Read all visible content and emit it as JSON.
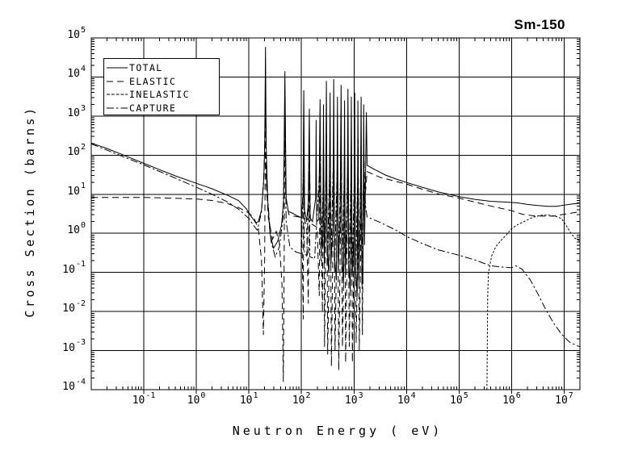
{
  "title": "Sm-150",
  "colors": {
    "foreground": "#000000",
    "background": "#ffffff"
  },
  "axes": {
    "x": {
      "label": "Neutron Energy ( eV)",
      "base": "10",
      "scale": "log",
      "log_min": -2,
      "log_max": 7.3,
      "tick_exponents": [
        -1,
        0,
        1,
        2,
        3,
        4,
        5,
        6,
        7
      ]
    },
    "y": {
      "label": "Cross Section (barns)",
      "base": "10",
      "scale": "log",
      "log_min": -4,
      "log_max": 5,
      "tick_exponents": [
        5,
        4,
        3,
        2,
        1,
        0,
        -1,
        -2,
        -3,
        -4
      ]
    }
  },
  "legend": {
    "entries": [
      {
        "label": "TOTAL",
        "style": "solid"
      },
      {
        "label": "ELASTIC",
        "style": "long-dash"
      },
      {
        "label": "INELASTIC",
        "style": "dotted"
      },
      {
        "label": "CAPTURE",
        "style": "dash-dot"
      }
    ]
  },
  "chart_data": {
    "type": "line",
    "title": "Sm-150",
    "xlabel": "Neutron Energy ( eV)",
    "ylabel": "Cross Section (barns)",
    "x_scale": "log",
    "y_scale": "log",
    "grid": true,
    "legend_position": "upper-left",
    "x_range_eV": [
      0.01,
      20000000
    ],
    "y_range_barns": [
      0.0001,
      100000
    ],
    "series": [
      {
        "name": "TOTAL",
        "style": "solid",
        "points_log10": [
          [
            -2.0,
            2.31
          ],
          [
            -1.7,
            2.17
          ],
          [
            -1.4,
            2.01
          ],
          [
            -1.0,
            1.79
          ],
          [
            -0.7,
            1.63
          ],
          [
            -0.4,
            1.47
          ],
          [
            0.0,
            1.28
          ],
          [
            0.3,
            1.14
          ],
          [
            0.6,
            0.97
          ],
          [
            0.8,
            0.84
          ],
          [
            0.95,
            0.63
          ],
          [
            1.05,
            0.42
          ],
          [
            1.13,
            0.27
          ],
          [
            1.18,
            0.3
          ],
          [
            1.24,
            0.6
          ],
          [
            1.28,
            1.3
          ],
          [
            1.3,
            2.2
          ],
          [
            1.315,
            4.77
          ],
          [
            1.33,
            2.2
          ],
          [
            1.36,
            0.8
          ],
          [
            1.4,
            0.0
          ],
          [
            1.47,
            -0.38
          ],
          [
            1.55,
            -0.2
          ],
          [
            1.62,
            0.2
          ],
          [
            1.66,
            0.8
          ],
          [
            1.685,
            4.15
          ],
          [
            1.71,
            0.9
          ],
          [
            1.75,
            0.56
          ],
          [
            1.82,
            0.52
          ],
          [
            1.92,
            0.45
          ],
          [
            2.0,
            0.4
          ],
          [
            2.03,
            1.0
          ],
          [
            2.045,
            3.66
          ],
          [
            2.06,
            0.6
          ],
          [
            2.1,
            0.3
          ],
          [
            2.13,
            0.8
          ],
          [
            2.15,
            3.19
          ],
          [
            2.165,
            0.4
          ],
          [
            2.21,
            0.3
          ],
          [
            2.27,
            0.9
          ],
          [
            2.28,
            2.9
          ],
          [
            2.29,
            0.3
          ],
          [
            2.33,
            0.35
          ],
          [
            2.355,
            3.43
          ],
          [
            2.37,
            0.1
          ],
          [
            2.405,
            -0.4
          ],
          [
            2.42,
            3.3
          ],
          [
            2.435,
            -0.6
          ],
          [
            2.46,
            0.3
          ],
          [
            2.475,
            3.9
          ],
          [
            2.49,
            -0.4
          ],
          [
            2.52,
            -1.0
          ],
          [
            2.545,
            3.6
          ],
          [
            2.56,
            -0.8
          ],
          [
            2.6,
            0.1
          ],
          [
            2.615,
            3.95
          ],
          [
            2.63,
            -0.6
          ],
          [
            2.665,
            -1.2
          ],
          [
            2.685,
            3.5
          ],
          [
            2.7,
            -0.8
          ],
          [
            2.735,
            0.2
          ],
          [
            2.755,
            3.8
          ],
          [
            2.77,
            -0.5
          ],
          [
            2.8,
            -1.3
          ],
          [
            2.82,
            3.4
          ],
          [
            2.835,
            -0.9
          ],
          [
            2.87,
            0.1
          ],
          [
            2.885,
            3.7
          ],
          [
            2.9,
            -0.7
          ],
          [
            2.93,
            -1.5
          ],
          [
            2.95,
            3.5
          ],
          [
            2.965,
            -1.1
          ],
          [
            3.0,
            -0.1
          ],
          [
            3.015,
            3.6
          ],
          [
            3.03,
            -0.9
          ],
          [
            3.06,
            -1.6
          ],
          [
            3.075,
            3.4
          ],
          [
            3.09,
            -1.2
          ],
          [
            3.12,
            0.3
          ],
          [
            3.135,
            3.5
          ],
          [
            3.15,
            -0.8
          ],
          [
            3.17,
            -1.3
          ],
          [
            3.185,
            3.3
          ],
          [
            3.2,
            -0.3
          ],
          [
            3.22,
            1.5
          ],
          [
            3.235,
            3.1
          ],
          [
            3.25,
            1.74
          ],
          [
            3.4,
            1.63
          ],
          [
            3.6,
            1.49
          ],
          [
            3.8,
            1.39
          ],
          [
            4.0,
            1.3
          ],
          [
            4.3,
            1.18
          ],
          [
            4.6,
            1.06
          ],
          [
            5.0,
            0.94
          ],
          [
            5.3,
            0.87
          ],
          [
            5.6,
            0.82
          ],
          [
            5.9,
            0.8
          ],
          [
            6.1,
            0.78
          ],
          [
            6.3,
            0.74
          ],
          [
            6.5,
            0.71
          ],
          [
            6.7,
            0.69
          ],
          [
            6.85,
            0.69
          ],
          [
            7.0,
            0.72
          ],
          [
            7.15,
            0.75
          ],
          [
            7.3,
            0.77
          ]
        ]
      },
      {
        "name": "ELASTIC",
        "style": "long-dash",
        "points_log10": [
          [
            -2.0,
            0.92
          ],
          [
            -1.5,
            0.92
          ],
          [
            -1.0,
            0.92
          ],
          [
            -0.5,
            0.9
          ],
          [
            0.0,
            0.88
          ],
          [
            0.3,
            0.84
          ],
          [
            0.6,
            0.76
          ],
          [
            0.8,
            0.66
          ],
          [
            1.0,
            0.52
          ],
          [
            1.1,
            0.38
          ],
          [
            1.18,
            0.12
          ],
          [
            1.24,
            -0.7
          ],
          [
            1.275,
            -2.6
          ],
          [
            1.3,
            -0.6
          ],
          [
            1.315,
            3.2
          ],
          [
            1.33,
            1.3
          ],
          [
            1.37,
            0.4
          ],
          [
            1.45,
            -0.15
          ],
          [
            1.52,
            0.05
          ],
          [
            1.58,
            -0.25
          ],
          [
            1.63,
            -1.3
          ],
          [
            1.655,
            -3.8
          ],
          [
            1.67,
            -1.2
          ],
          [
            1.685,
            3.3
          ],
          [
            1.7,
            0.9
          ],
          [
            1.76,
            0.48
          ],
          [
            1.85,
            0.44
          ],
          [
            1.95,
            0.42
          ],
          [
            2.0,
            0.38
          ],
          [
            2.02,
            -0.8
          ],
          [
            2.035,
            -2.2
          ],
          [
            2.045,
            2.8
          ],
          [
            2.06,
            0.35
          ],
          [
            2.1,
            0.18
          ],
          [
            2.13,
            -1.8
          ],
          [
            2.15,
            2.4
          ],
          [
            2.17,
            0.25
          ],
          [
            2.22,
            0.22
          ],
          [
            2.3,
            0.15
          ],
          [
            2.34,
            -1.6
          ],
          [
            2.355,
            2.6
          ],
          [
            2.375,
            0.1
          ],
          [
            2.4,
            -2.0
          ],
          [
            2.42,
            2.4
          ],
          [
            2.44,
            -2.9
          ],
          [
            2.46,
            0.0
          ],
          [
            2.475,
            2.9
          ],
          [
            2.5,
            -3.1
          ],
          [
            2.53,
            -0.5
          ],
          [
            2.545,
            2.6
          ],
          [
            2.57,
            -3.4
          ],
          [
            2.6,
            -0.2
          ],
          [
            2.615,
            2.9
          ],
          [
            2.64,
            -3.0
          ],
          [
            2.67,
            -0.5
          ],
          [
            2.685,
            2.5
          ],
          [
            2.71,
            -3.5
          ],
          [
            2.74,
            -0.1
          ],
          [
            2.755,
            2.8
          ],
          [
            2.78,
            -2.9
          ],
          [
            2.81,
            -0.6
          ],
          [
            2.82,
            2.4
          ],
          [
            2.84,
            -3.3
          ],
          [
            2.87,
            -0.2
          ],
          [
            2.885,
            2.6
          ],
          [
            2.91,
            -2.9
          ],
          [
            2.94,
            -0.7
          ],
          [
            2.95,
            2.5
          ],
          [
            2.97,
            -3.3
          ],
          [
            3.0,
            -0.3
          ],
          [
            3.015,
            2.6
          ],
          [
            3.04,
            -2.8
          ],
          [
            3.07,
            -0.8
          ],
          [
            3.08,
            2.4
          ],
          [
            3.1,
            -3.0
          ],
          [
            3.13,
            -0.2
          ],
          [
            3.135,
            2.5
          ],
          [
            3.16,
            -2.6
          ],
          [
            3.185,
            2.3
          ],
          [
            3.21,
            0.9
          ],
          [
            3.25,
            1.58
          ],
          [
            3.5,
            1.43
          ],
          [
            3.8,
            1.33
          ],
          [
            4.0,
            1.26
          ],
          [
            4.3,
            1.13
          ],
          [
            4.6,
            1.01
          ],
          [
            5.0,
            0.9
          ],
          [
            5.3,
            0.8
          ],
          [
            5.6,
            0.7
          ],
          [
            5.8,
            0.64
          ],
          [
            6.0,
            0.58
          ],
          [
            6.2,
            0.49
          ],
          [
            6.4,
            0.45
          ],
          [
            6.6,
            0.44
          ],
          [
            6.8,
            0.44
          ],
          [
            7.0,
            0.49
          ],
          [
            7.15,
            0.52
          ],
          [
            7.3,
            0.55
          ]
        ]
      },
      {
        "name": "INELASTIC",
        "style": "dotted",
        "points_log10": [
          [
            5.53,
            -4.0
          ],
          [
            5.545,
            -1.6
          ],
          [
            5.56,
            -1.0
          ],
          [
            5.62,
            -0.58
          ],
          [
            5.7,
            -0.34
          ],
          [
            5.8,
            -0.18
          ],
          [
            5.9,
            -0.04
          ],
          [
            6.0,
            0.12
          ],
          [
            6.1,
            0.21
          ],
          [
            6.25,
            0.31
          ],
          [
            6.4,
            0.41
          ],
          [
            6.55,
            0.46
          ],
          [
            6.7,
            0.47
          ],
          [
            6.85,
            0.43
          ],
          [
            6.95,
            0.38
          ],
          [
            7.05,
            0.18
          ],
          [
            7.12,
            0.02
          ],
          [
            7.2,
            -0.12
          ],
          [
            7.3,
            -0.2
          ]
        ]
      },
      {
        "name": "CAPTURE",
        "style": "dash-dot",
        "points_log10": [
          [
            -2.0,
            2.29
          ],
          [
            -1.5,
            2.02
          ],
          [
            -1.0,
            1.75
          ],
          [
            -0.5,
            1.47
          ],
          [
            0.0,
            1.18
          ],
          [
            0.3,
            1.0
          ],
          [
            0.6,
            0.8
          ],
          [
            0.8,
            0.62
          ],
          [
            1.0,
            0.38
          ],
          [
            1.1,
            0.18
          ],
          [
            1.16,
            0.08
          ],
          [
            1.24,
            0.55
          ],
          [
            1.29,
            1.6
          ],
          [
            1.315,
            3.35
          ],
          [
            1.34,
            1.2
          ],
          [
            1.42,
            -0.2
          ],
          [
            1.5,
            -0.6
          ],
          [
            1.58,
            -0.35
          ],
          [
            1.65,
            0.4
          ],
          [
            1.685,
            2.95
          ],
          [
            1.71,
            0.3
          ],
          [
            1.78,
            -0.35
          ],
          [
            1.9,
            -0.48
          ],
          [
            2.0,
            -0.52
          ],
          [
            2.04,
            1.9
          ],
          [
            2.055,
            -0.5
          ],
          [
            2.1,
            -0.58
          ],
          [
            2.15,
            1.6
          ],
          [
            2.16,
            -0.6
          ],
          [
            2.25,
            -0.65
          ],
          [
            2.355,
            1.8
          ],
          [
            2.37,
            -0.7
          ],
          [
            2.42,
            1.5
          ],
          [
            2.435,
            -0.75
          ],
          [
            2.475,
            2.2
          ],
          [
            2.49,
            -0.8
          ],
          [
            2.545,
            2.0
          ],
          [
            2.56,
            -0.85
          ],
          [
            2.615,
            2.3
          ],
          [
            2.63,
            -0.9
          ],
          [
            2.685,
            1.9
          ],
          [
            2.7,
            -0.95
          ],
          [
            2.755,
            2.1
          ],
          [
            2.77,
            -1.0
          ],
          [
            2.82,
            1.8
          ],
          [
            2.835,
            -1.05
          ],
          [
            2.885,
            2.0
          ],
          [
            2.9,
            -1.1
          ],
          [
            2.95,
            1.8
          ],
          [
            2.965,
            -1.15
          ],
          [
            3.015,
            1.9
          ],
          [
            3.03,
            -1.2
          ],
          [
            3.075,
            1.7
          ],
          [
            3.09,
            -1.25
          ],
          [
            3.135,
            1.8
          ],
          [
            3.15,
            -1.3
          ],
          [
            3.185,
            1.6
          ],
          [
            3.22,
            0.7
          ],
          [
            3.25,
            0.42
          ],
          [
            3.5,
            0.28
          ],
          [
            3.8,
            0.08
          ],
          [
            4.0,
            -0.08
          ],
          [
            4.3,
            -0.26
          ],
          [
            4.6,
            -0.42
          ],
          [
            5.0,
            -0.56
          ],
          [
            5.3,
            -0.68
          ],
          [
            5.5,
            -0.78
          ],
          [
            5.6,
            -0.83
          ],
          [
            5.8,
            -0.86
          ],
          [
            6.0,
            -0.88
          ],
          [
            6.08,
            -0.83
          ],
          [
            6.2,
            -0.92
          ],
          [
            6.35,
            -1.18
          ],
          [
            6.5,
            -1.55
          ],
          [
            6.65,
            -1.95
          ],
          [
            6.8,
            -2.3
          ],
          [
            6.95,
            -2.58
          ],
          [
            7.1,
            -2.78
          ],
          [
            7.25,
            -2.88
          ],
          [
            7.3,
            -2.9
          ]
        ]
      }
    ]
  }
}
